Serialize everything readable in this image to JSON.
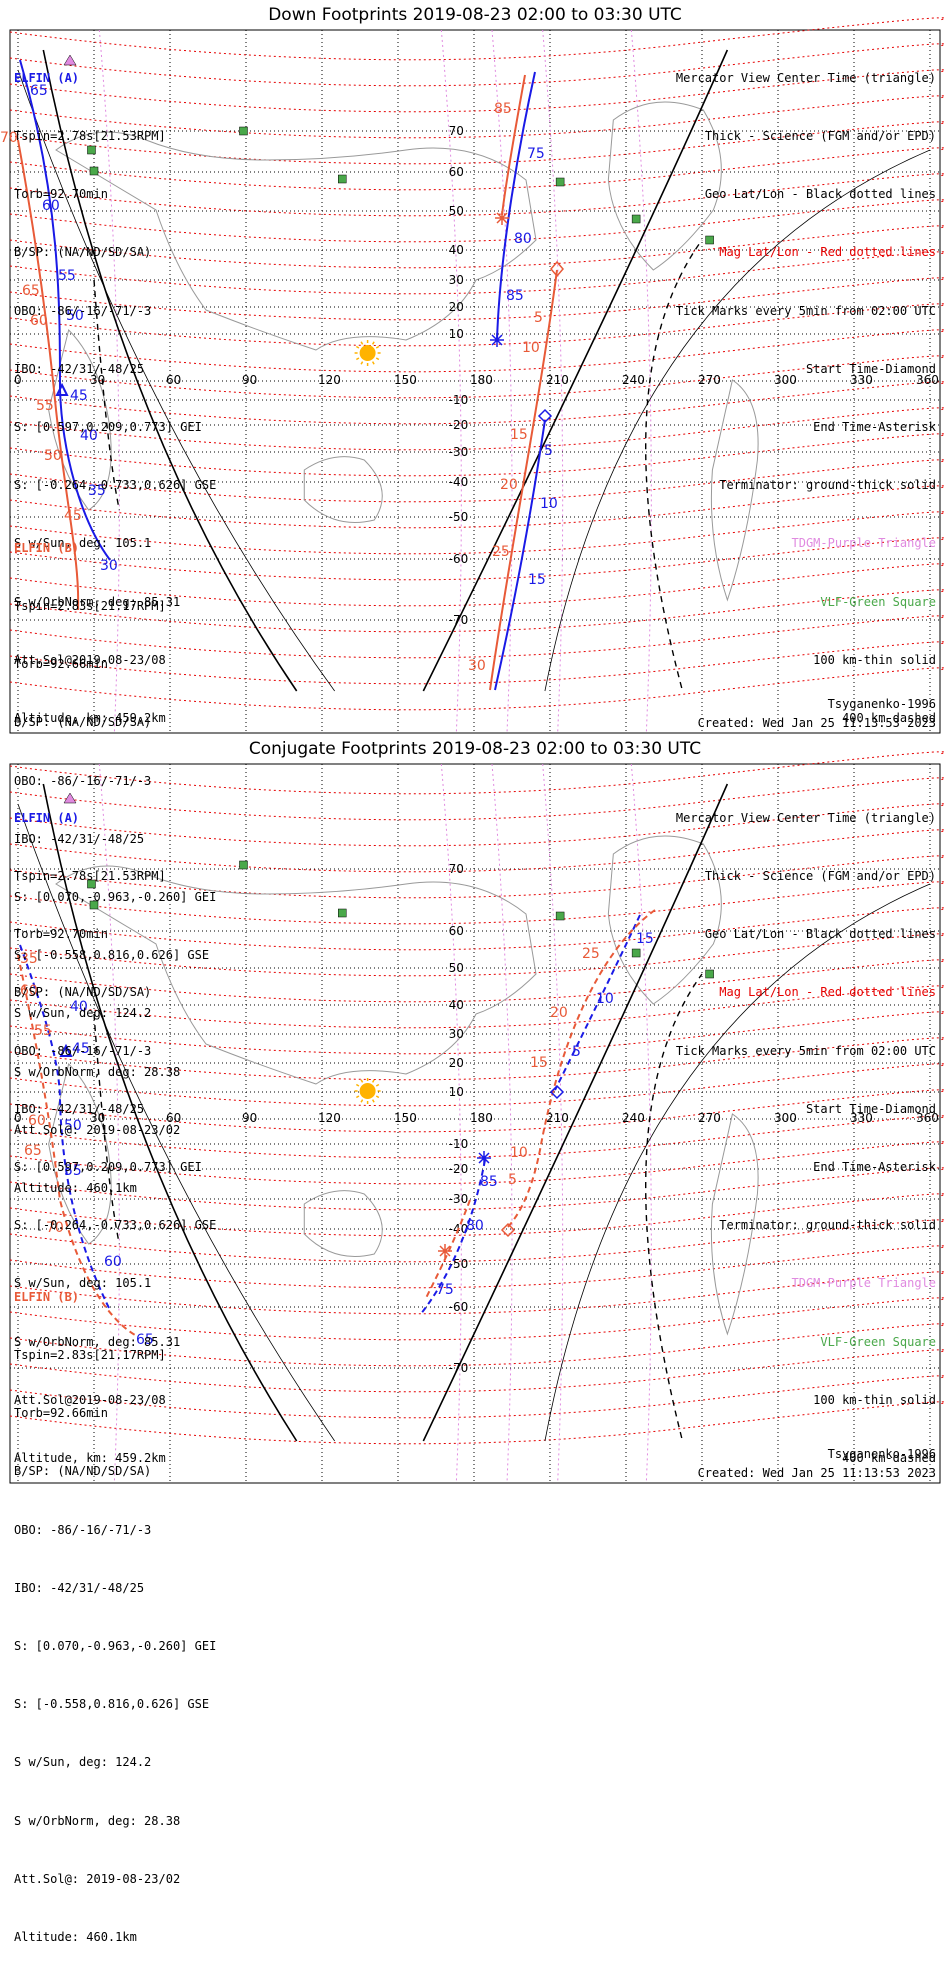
{
  "panels": [
    {
      "title": "Down Footprints 2019-08-23 02:00 to 03:30 UTC",
      "elfin_a": {
        "label": "ELFIN (A)",
        "lines": [
          "Tspin=2.78s[21.53RPM]",
          "Torb=92.70min",
          "B/SP: (NA/ND/SD/SA)",
          "OBO: -86/-16/-71/-3",
          "IBO: -42/31/-48/25",
          "S: [0.597,0.209,0.773] GEI",
          "S: [-0.264,-0.733,0.626] GSE",
          "S w/Sun, deg: 105.1",
          "S w/OrbNorm, deg: 85.31",
          "Att.Sol@2019-08-23/08",
          "Altitude, km: 459.2km"
        ]
      },
      "elfin_b": {
        "label": "ELFIN (B)",
        "lines": [
          "Tspin=2.83s[21.17RPM]",
          "Torb=92.66min",
          "B/SP: (NA/ND/SD/SA)",
          "OBO: -86/-16/-71/-3",
          "IBO: -42/31/-48/25",
          "S: [0.070,-0.963,-0.260] GEI",
          "S: [-0.558,0.816,0.626] GSE",
          "S w/Sun, deg: 124.2",
          "S w/OrbNorm, deg: 28.38",
          "Att.Sol@: 2019-08-23/02",
          "Altitude: 460.1km"
        ]
      },
      "legend": [
        {
          "text": "Mercator View Center Time (triangle)",
          "color": "#000000"
        },
        {
          "text": "Thick - Science (FGM and/or EPD)",
          "color": "#000000"
        },
        {
          "text": "Geo Lat/Lon - Black dotted lines",
          "color": "#000000"
        },
        {
          "text": "Mag Lat/Lon - Red dotted lines",
          "color": "#e60000"
        },
        {
          "text": "Tick Marks every 5min from 02:00 UTC",
          "color": "#000000"
        },
        {
          "text": "Start Time-Diamond",
          "color": "#000000"
        },
        {
          "text": "End Time-Asterisk",
          "color": "#000000"
        },
        {
          "text": "Terminator: ground-thick solid",
          "color": "#000000"
        },
        {
          "text": "TDGM-Purple Triangle",
          "color": "#e08ae0"
        },
        {
          "text": "VLF-Green Square",
          "color": "#4aa84a"
        },
        {
          "text": "100 km-thin solid",
          "color": "#000000"
        },
        {
          "text": "400 km-dashed",
          "color": "#000000"
        }
      ],
      "model": "Tsyganenko-1996",
      "created": "Created: Wed Jan 25 11:13:53 2023",
      "lon_labels": [
        "0",
        "30",
        "60",
        "90",
        "120",
        "150",
        "180",
        "210",
        "240",
        "270",
        "300",
        "330",
        "360"
      ],
      "lat_labels": [
        "70",
        "60",
        "50",
        "40",
        "30",
        "20",
        "10",
        "-10",
        "-20",
        "-30",
        "-40",
        "-50",
        "-60",
        "-70"
      ],
      "track_a_left_labels": [
        "65",
        "60",
        "55",
        "50",
        "45",
        "40",
        "35",
        "30"
      ],
      "track_b_left_labels": [
        "70",
        "65",
        "60",
        "55",
        "50",
        "45"
      ],
      "track_a_right_labels": [
        "75",
        "80",
        "85",
        "5",
        "10",
        "15"
      ],
      "track_b_right_labels": [
        "85",
        "5",
        "10",
        "15",
        "20",
        "25",
        "30"
      ]
    },
    {
      "title": "Conjugate Footprints 2019-08-23 02:00 to 03:30 UTC",
      "elfin_a": {
        "label": "ELFIN (A)",
        "lines": [
          "Tspin=2.78s[21.53RPM]",
          "Torb=92.70min",
          "B/SP: (NA/ND/SD/SA)",
          "OBO: -86/-16/-71/-3",
          "IBO: -42/31/-48/25",
          "S: [0.597,0.209,0.773] GEI",
          "S: [-0.264,-0.733,0.626] GSE",
          "S w/Sun, deg: 105.1",
          "S w/OrbNorm, deg: 85.31",
          "Att.Sol@2019-08-23/08",
          "Altitude, km: 459.2km"
        ]
      },
      "elfin_b": {
        "label": "ELFIN (B)",
        "lines": [
          "Tspin=2.83s[21.17RPM]",
          "Torb=92.66min",
          "B/SP: (NA/ND/SD/SA)",
          "OBO: -86/-16/-71/-3",
          "IBO: -42/31/-48/25",
          "S: [0.070,-0.963,-0.260] GEI",
          "S: [-0.558,0.816,0.626] GSE",
          "S w/Sun, deg: 124.2",
          "S w/OrbNorm, deg: 28.38",
          "Att.Sol@: 2019-08-23/02",
          "Altitude: 460.1km"
        ]
      },
      "legend": [
        {
          "text": "Mercator View Center Time (triangle)",
          "color": "#000000"
        },
        {
          "text": "Thick - Science (FGM and/or EPD)",
          "color": "#000000"
        },
        {
          "text": "Geo Lat/Lon - Black dotted lines",
          "color": "#000000"
        },
        {
          "text": "Mag Lat/Lon - Red dotted lines",
          "color": "#e60000"
        },
        {
          "text": "Tick Marks every 5min from 02:00 UTC",
          "color": "#000000"
        },
        {
          "text": "Start Time-Diamond",
          "color": "#000000"
        },
        {
          "text": "End Time-Asterisk",
          "color": "#000000"
        },
        {
          "text": "Terminator: ground-thick solid",
          "color": "#000000"
        },
        {
          "text": "TDGM-Purple Triangle",
          "color": "#e08ae0"
        },
        {
          "text": "VLF-Green Square",
          "color": "#4aa84a"
        },
        {
          "text": "100 km-thin solid",
          "color": "#000000"
        },
        {
          "text": "400 km-dashed",
          "color": "#000000"
        }
      ],
      "model": "Tsyganenko-1996",
      "created": "Created: Wed Jan 25 11:13:53 2023",
      "lon_labels": [
        "0",
        "30",
        "60",
        "90",
        "120",
        "150",
        "180",
        "210",
        "240",
        "270",
        "300",
        "330",
        "360"
      ],
      "lat_labels": [
        "70",
        "60",
        "50",
        "40",
        "30",
        "20",
        "10",
        "-10",
        "-20",
        "-30",
        "-40",
        "-50",
        "-60",
        "-70"
      ],
      "track_a_left_labels": [
        "40",
        "45",
        "50",
        "55",
        "60",
        "65"
      ],
      "track_b_left_labels": [
        "35",
        "60",
        "55",
        "60",
        "65",
        "70"
      ],
      "track_a_right_labels": [
        "15",
        "10",
        "5",
        "85",
        "80",
        "75"
      ],
      "track_b_right_labels": [
        "25",
        "20",
        "15",
        "10",
        "5"
      ]
    }
  ],
  "colors": {
    "elfin_a": "#1a1ae6",
    "elfin_b": "#e85a38",
    "mag_grid": "#e60000",
    "geo_grid": "#000000",
    "tdgm": "#e08ae0",
    "vlf": "#4aa84a",
    "sun": "#ffb300"
  }
}
